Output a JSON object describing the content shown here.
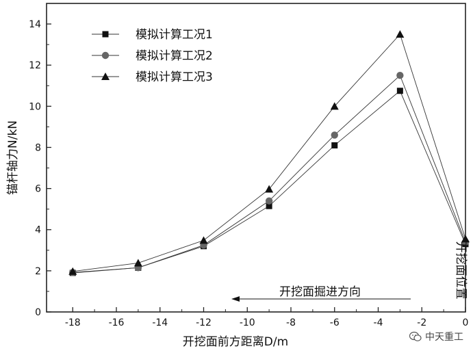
{
  "chart_data": {
    "type": "line",
    "title": "",
    "xlabel": "开挖面前方距离D/m",
    "ylabel": "锚杆轴力N/kN",
    "xlim": [
      -19.2,
      0
    ],
    "ylim": [
      0,
      15
    ],
    "xticks": [
      -18,
      -16,
      -14,
      -12,
      -10,
      -8,
      -6,
      -4,
      -2,
      0
    ],
    "yticks": [
      0,
      2,
      4,
      6,
      8,
      10,
      12,
      14
    ],
    "x": [
      -18,
      -15,
      -12,
      -9,
      -6,
      -3,
      0
    ],
    "series": [
      {
        "name": "模拟计算工况1",
        "marker": "square",
        "values": [
          1.9,
          2.15,
          3.2,
          5.15,
          8.1,
          10.75,
          3.3
        ]
      },
      {
        "name": "模拟计算工况2",
        "marker": "circle",
        "values": [
          1.92,
          2.15,
          3.25,
          5.4,
          8.6,
          11.5,
          3.4
        ]
      },
      {
        "name": "模拟计算工况3",
        "marker": "triangle",
        "values": [
          1.97,
          2.38,
          3.48,
          5.97,
          10.0,
          13.5,
          3.55
        ]
      }
    ],
    "legend_position": "top-left",
    "grid": false,
    "annotations": {
      "direction_text": "开挖面掘进方向",
      "face_text": "开挖面位置"
    }
  },
  "watermark": {
    "text": "中天重工",
    "icon": "wechat-icon"
  }
}
